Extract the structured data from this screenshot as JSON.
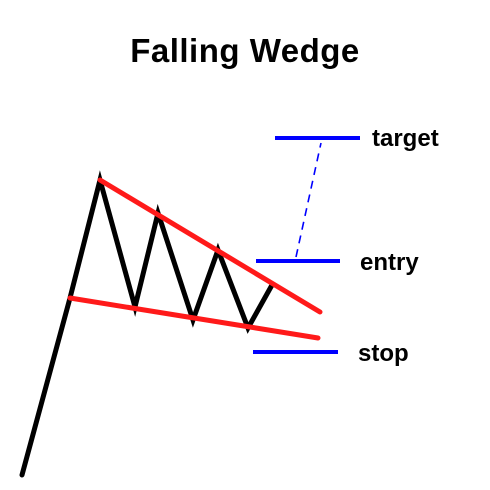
{
  "title": "Falling Wedge",
  "levels": {
    "target": "target",
    "entry": "entry",
    "stop": "stop"
  },
  "colors": {
    "price": "#000000",
    "trendlines": "#ff1a1a",
    "levels": "#0000ff",
    "text": "#000000",
    "background": "#ffffff"
  }
}
